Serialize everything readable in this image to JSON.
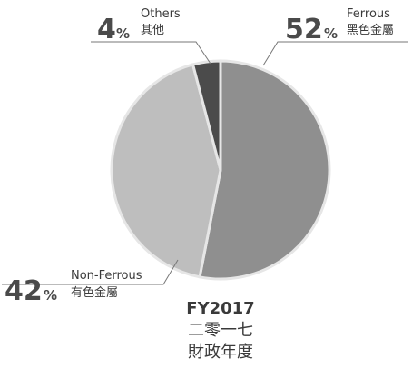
{
  "chart_data": {
    "type": "pie",
    "categories": [
      "Ferrous",
      "Non-Ferrous",
      "Others"
    ],
    "categories_zh": [
      "黑色金屬",
      "有色金屬",
      "其他"
    ],
    "values": [
      52,
      42,
      4
    ],
    "unit": "%",
    "colors": [
      "#8f8f8f",
      "#bebebe",
      "#4b4b4b"
    ],
    "center_label": [
      "FY2017",
      "二零一七",
      "財政年度"
    ]
  }
}
